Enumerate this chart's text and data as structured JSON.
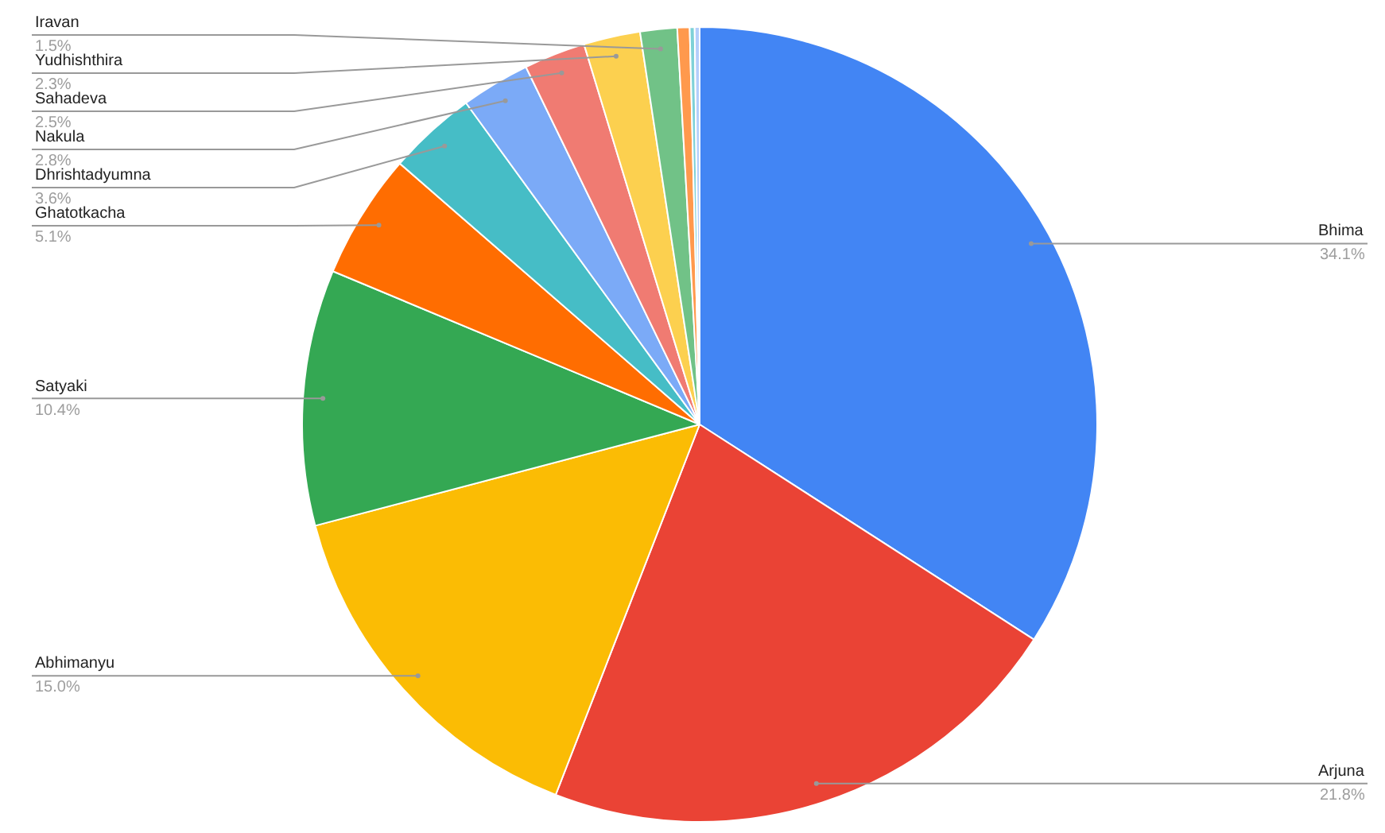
{
  "chart_data": {
    "type": "pie",
    "categories": [
      "Bhima",
      "Arjuna",
      "Abhimanyu",
      "Satyaki",
      "Ghatotkacha",
      "Dhrishtadyumna",
      "Nakula",
      "Sahadeva",
      "Yudhishthira",
      "Iravan",
      null,
      null,
      null
    ],
    "values": [
      34.1,
      21.8,
      15.0,
      10.4,
      5.1,
      3.6,
      2.8,
      2.5,
      2.3,
      1.5,
      0.5,
      0.2,
      0.2
    ],
    "value_labels": [
      "34.1%",
      "21.8%",
      "15.0%",
      "10.4%",
      "5.1%",
      "3.6%",
      "2.8%",
      "2.5%",
      "2.3%",
      "1.5%",
      null,
      null,
      null
    ],
    "colors": [
      "#4285f4",
      "#ea4335",
      "#fbbc04",
      "#34a853",
      "#ff6d01",
      "#46bdc6",
      "#7baaf7",
      "#f07b72",
      "#fcd04f",
      "#71c287",
      "#ff994d",
      "#7ed1d7",
      "#b3cefb"
    ],
    "legend": false
  }
}
